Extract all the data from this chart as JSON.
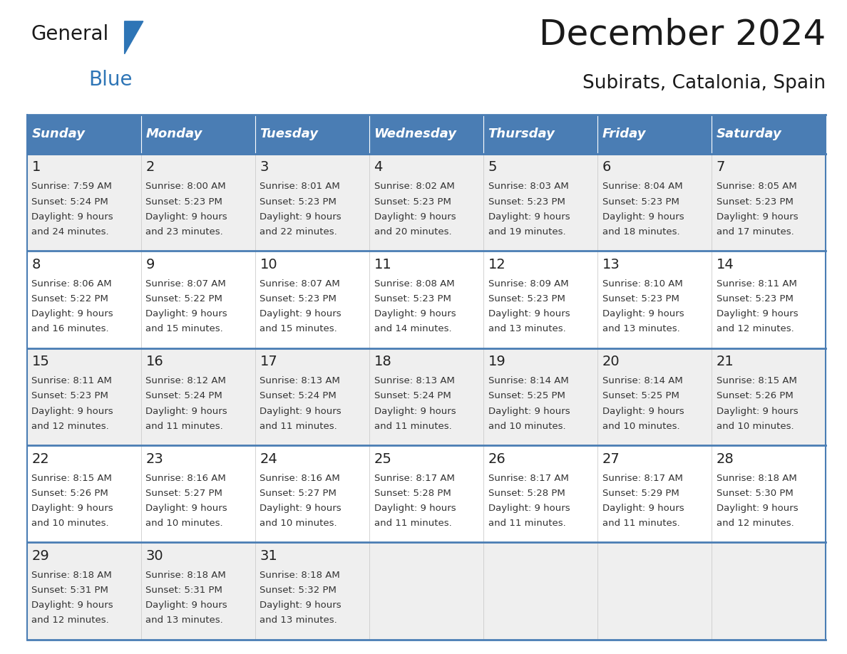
{
  "title": "December 2024",
  "subtitle": "Subirats, Catalonia, Spain",
  "header_bg": "#4A7DB4",
  "header_text_color": "#FFFFFF",
  "cell_bg_light": "#EFEFEF",
  "cell_bg_white": "#FFFFFF",
  "week_border_color": "#4A7DB4",
  "cell_border_color": "#CCCCCC",
  "day_names": [
    "Sunday",
    "Monday",
    "Tuesday",
    "Wednesday",
    "Thursday",
    "Friday",
    "Saturday"
  ],
  "days": [
    {
      "day": 1,
      "col": 0,
      "row": 0,
      "sunrise": "7:59 AM",
      "sunset": "5:24 PM",
      "daylight_h": "9 hours",
      "daylight_m": "24 minutes."
    },
    {
      "day": 2,
      "col": 1,
      "row": 0,
      "sunrise": "8:00 AM",
      "sunset": "5:23 PM",
      "daylight_h": "9 hours",
      "daylight_m": "23 minutes."
    },
    {
      "day": 3,
      "col": 2,
      "row": 0,
      "sunrise": "8:01 AM",
      "sunset": "5:23 PM",
      "daylight_h": "9 hours",
      "daylight_m": "22 minutes."
    },
    {
      "day": 4,
      "col": 3,
      "row": 0,
      "sunrise": "8:02 AM",
      "sunset": "5:23 PM",
      "daylight_h": "9 hours",
      "daylight_m": "20 minutes."
    },
    {
      "day": 5,
      "col": 4,
      "row": 0,
      "sunrise": "8:03 AM",
      "sunset": "5:23 PM",
      "daylight_h": "9 hours",
      "daylight_m": "19 minutes."
    },
    {
      "day": 6,
      "col": 5,
      "row": 0,
      "sunrise": "8:04 AM",
      "sunset": "5:23 PM",
      "daylight_h": "9 hours",
      "daylight_m": "18 minutes."
    },
    {
      "day": 7,
      "col": 6,
      "row": 0,
      "sunrise": "8:05 AM",
      "sunset": "5:23 PM",
      "daylight_h": "9 hours",
      "daylight_m": "17 minutes."
    },
    {
      "day": 8,
      "col": 0,
      "row": 1,
      "sunrise": "8:06 AM",
      "sunset": "5:22 PM",
      "daylight_h": "9 hours",
      "daylight_m": "16 minutes."
    },
    {
      "day": 9,
      "col": 1,
      "row": 1,
      "sunrise": "8:07 AM",
      "sunset": "5:22 PM",
      "daylight_h": "9 hours",
      "daylight_m": "15 minutes."
    },
    {
      "day": 10,
      "col": 2,
      "row": 1,
      "sunrise": "8:07 AM",
      "sunset": "5:23 PM",
      "daylight_h": "9 hours",
      "daylight_m": "15 minutes."
    },
    {
      "day": 11,
      "col": 3,
      "row": 1,
      "sunrise": "8:08 AM",
      "sunset": "5:23 PM",
      "daylight_h": "9 hours",
      "daylight_m": "14 minutes."
    },
    {
      "day": 12,
      "col": 4,
      "row": 1,
      "sunrise": "8:09 AM",
      "sunset": "5:23 PM",
      "daylight_h": "9 hours",
      "daylight_m": "13 minutes."
    },
    {
      "day": 13,
      "col": 5,
      "row": 1,
      "sunrise": "8:10 AM",
      "sunset": "5:23 PM",
      "daylight_h": "9 hours",
      "daylight_m": "13 minutes."
    },
    {
      "day": 14,
      "col": 6,
      "row": 1,
      "sunrise": "8:11 AM",
      "sunset": "5:23 PM",
      "daylight_h": "9 hours",
      "daylight_m": "12 minutes."
    },
    {
      "day": 15,
      "col": 0,
      "row": 2,
      "sunrise": "8:11 AM",
      "sunset": "5:23 PM",
      "daylight_h": "9 hours",
      "daylight_m": "12 minutes."
    },
    {
      "day": 16,
      "col": 1,
      "row": 2,
      "sunrise": "8:12 AM",
      "sunset": "5:24 PM",
      "daylight_h": "9 hours",
      "daylight_m": "11 minutes."
    },
    {
      "day": 17,
      "col": 2,
      "row": 2,
      "sunrise": "8:13 AM",
      "sunset": "5:24 PM",
      "daylight_h": "9 hours",
      "daylight_m": "11 minutes."
    },
    {
      "day": 18,
      "col": 3,
      "row": 2,
      "sunrise": "8:13 AM",
      "sunset": "5:24 PM",
      "daylight_h": "9 hours",
      "daylight_m": "11 minutes."
    },
    {
      "day": 19,
      "col": 4,
      "row": 2,
      "sunrise": "8:14 AM",
      "sunset": "5:25 PM",
      "daylight_h": "9 hours",
      "daylight_m": "10 minutes."
    },
    {
      "day": 20,
      "col": 5,
      "row": 2,
      "sunrise": "8:14 AM",
      "sunset": "5:25 PM",
      "daylight_h": "9 hours",
      "daylight_m": "10 minutes."
    },
    {
      "day": 21,
      "col": 6,
      "row": 2,
      "sunrise": "8:15 AM",
      "sunset": "5:26 PM",
      "daylight_h": "9 hours",
      "daylight_m": "10 minutes."
    },
    {
      "day": 22,
      "col": 0,
      "row": 3,
      "sunrise": "8:15 AM",
      "sunset": "5:26 PM",
      "daylight_h": "9 hours",
      "daylight_m": "10 minutes."
    },
    {
      "day": 23,
      "col": 1,
      "row": 3,
      "sunrise": "8:16 AM",
      "sunset": "5:27 PM",
      "daylight_h": "9 hours",
      "daylight_m": "10 minutes."
    },
    {
      "day": 24,
      "col": 2,
      "row": 3,
      "sunrise": "8:16 AM",
      "sunset": "5:27 PM",
      "daylight_h": "9 hours",
      "daylight_m": "10 minutes."
    },
    {
      "day": 25,
      "col": 3,
      "row": 3,
      "sunrise": "8:17 AM",
      "sunset": "5:28 PM",
      "daylight_h": "9 hours",
      "daylight_m": "11 minutes."
    },
    {
      "day": 26,
      "col": 4,
      "row": 3,
      "sunrise": "8:17 AM",
      "sunset": "5:28 PM",
      "daylight_h": "9 hours",
      "daylight_m": "11 minutes."
    },
    {
      "day": 27,
      "col": 5,
      "row": 3,
      "sunrise": "8:17 AM",
      "sunset": "5:29 PM",
      "daylight_h": "9 hours",
      "daylight_m": "11 minutes."
    },
    {
      "day": 28,
      "col": 6,
      "row": 3,
      "sunrise": "8:18 AM",
      "sunset": "5:30 PM",
      "daylight_h": "9 hours",
      "daylight_m": "12 minutes."
    },
    {
      "day": 29,
      "col": 0,
      "row": 4,
      "sunrise": "8:18 AM",
      "sunset": "5:31 PM",
      "daylight_h": "9 hours",
      "daylight_m": "12 minutes."
    },
    {
      "day": 30,
      "col": 1,
      "row": 4,
      "sunrise": "8:18 AM",
      "sunset": "5:31 PM",
      "daylight_h": "9 hours",
      "daylight_m": "13 minutes."
    },
    {
      "day": 31,
      "col": 2,
      "row": 4,
      "sunrise": "8:18 AM",
      "sunset": "5:32 PM",
      "daylight_h": "9 hours",
      "daylight_m": "13 minutes."
    }
  ],
  "num_rows": 5,
  "fig_width": 11.88,
  "fig_height": 9.18,
  "dpi": 100
}
